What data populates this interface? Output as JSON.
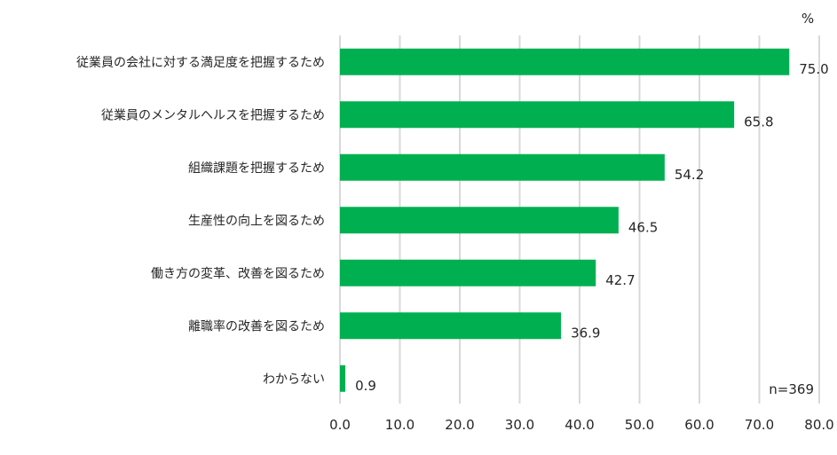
{
  "chart_data": {
    "type": "bar",
    "orientation": "horizontal",
    "unit": "%",
    "sample_note": "n=369",
    "categories": [
      "従業員の会社に対する満足度を把握するため",
      "従業員のメンタルヘルスを把握するため",
      "組織課題を把握するため",
      "生産性の向上を図るため",
      "働き方の変革、改善を図るため",
      "離職率の改善を図るため",
      "わからない"
    ],
    "values": [
      75.0,
      65.8,
      54.2,
      46.5,
      42.7,
      36.9,
      0.9
    ],
    "value_labels": [
      "75.0",
      "65.8",
      "54.2",
      "46.5",
      "42.7",
      "36.9",
      "0.9"
    ],
    "xlim": [
      0,
      80
    ],
    "ticks": [
      "0.0",
      "10.0",
      "20.0",
      "30.0",
      "40.0",
      "50.0",
      "60.0",
      "70.0",
      "80.0"
    ],
    "tick_values": [
      0,
      10,
      20,
      30,
      40,
      50,
      60,
      70,
      80
    ],
    "grid": true,
    "bar_color": "#00b050",
    "grid_color": "#d9d9d9"
  }
}
